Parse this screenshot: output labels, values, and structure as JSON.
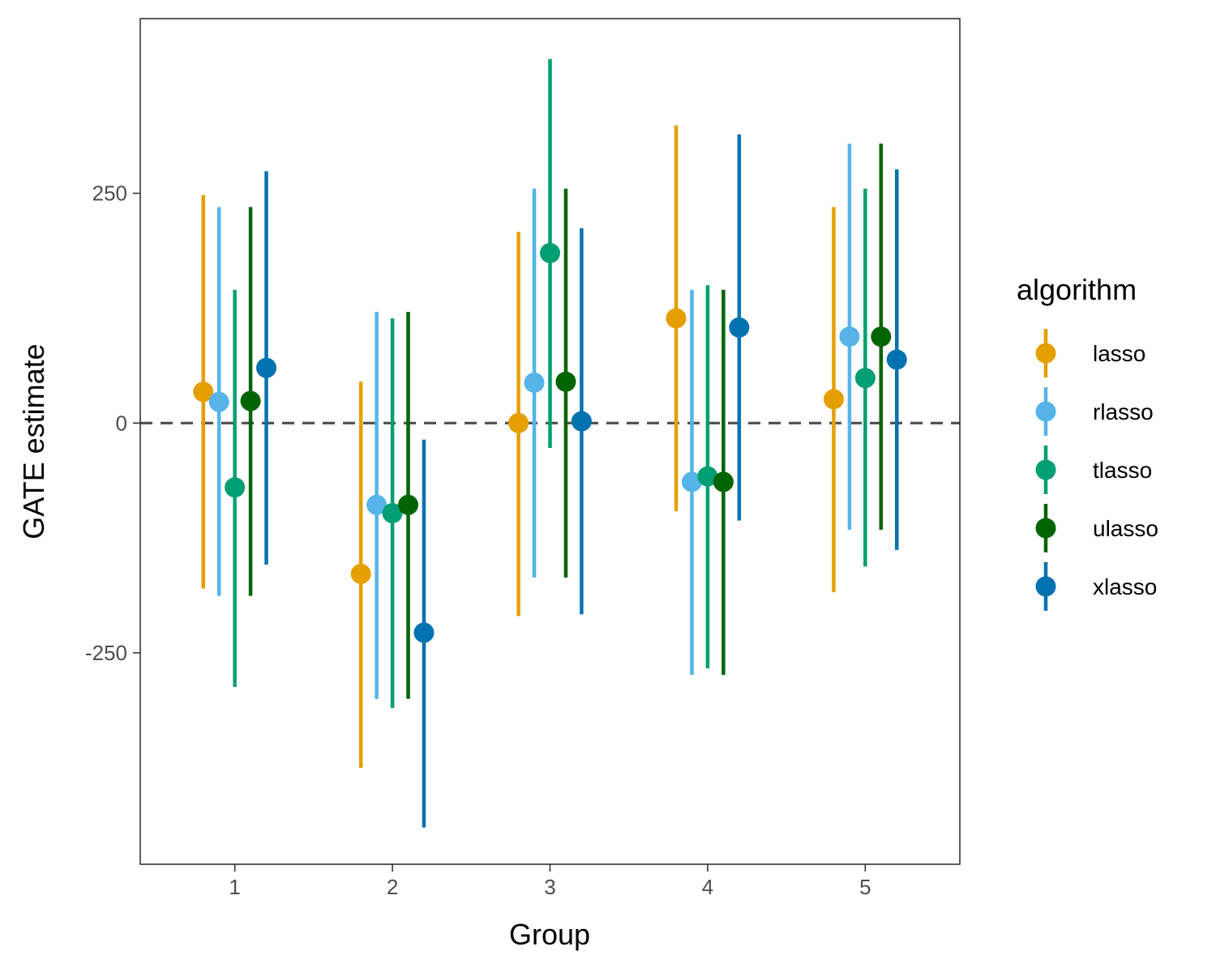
{
  "chart_data": {
    "type": "scatter",
    "subtype": "point-range (dodged points with 95% interval bars)",
    "xlabel": "Group",
    "ylabel": "GATE estimate",
    "categories": [
      "1",
      "2",
      "3",
      "4",
      "5"
    ],
    "xlim": [
      0.4,
      5.6
    ],
    "ylim": [
      -480,
      440
    ],
    "y_ticks": [
      {
        "value": -250,
        "label": "-250"
      },
      {
        "value": 0,
        "label": "0"
      },
      {
        "value": 250,
        "label": "250"
      }
    ],
    "reference_line": {
      "y": 0,
      "style": "dashed",
      "color": "#4d4d4d"
    },
    "grid": false,
    "legend": {
      "title": "algorithm",
      "position": "right"
    },
    "series": [
      {
        "name": "lasso",
        "color": "#E69F00",
        "points": [
          {
            "group": "1",
            "estimate": 34,
            "lower": -180,
            "upper": 248
          },
          {
            "group": "2",
            "estimate": -164,
            "lower": -375,
            "upper": 45
          },
          {
            "group": "3",
            "estimate": 0,
            "lower": -210,
            "upper": 208
          },
          {
            "group": "4",
            "estimate": 114,
            "lower": -96,
            "upper": 324
          },
          {
            "group": "5",
            "estimate": 26,
            "lower": -184,
            "upper": 235
          }
        ]
      },
      {
        "name": "rlasso",
        "color": "#56B4E9",
        "points": [
          {
            "group": "1",
            "estimate": 23,
            "lower": -188,
            "upper": 235
          },
          {
            "group": "2",
            "estimate": -89,
            "lower": -300,
            "upper": 121
          },
          {
            "group": "3",
            "estimate": 44,
            "lower": -168,
            "upper": 255
          },
          {
            "group": "4",
            "estimate": -64,
            "lower": -274,
            "upper": 145
          },
          {
            "group": "5",
            "estimate": 94,
            "lower": -116,
            "upper": 304
          }
        ]
      },
      {
        "name": "tlasso",
        "color": "#009E73",
        "points": [
          {
            "group": "1",
            "estimate": -70,
            "lower": -287,
            "upper": 145
          },
          {
            "group": "2",
            "estimate": -98,
            "lower": -310,
            "upper": 114
          },
          {
            "group": "3",
            "estimate": 185,
            "lower": -27,
            "upper": 396
          },
          {
            "group": "4",
            "estimate": -58,
            "lower": -267,
            "upper": 150
          },
          {
            "group": "5",
            "estimate": 49,
            "lower": -156,
            "upper": 255
          }
        ]
      },
      {
        "name": "ulasso",
        "color": "#006400",
        "points": [
          {
            "group": "1",
            "estimate": 24,
            "lower": -188,
            "upper": 235
          },
          {
            "group": "2",
            "estimate": -89,
            "lower": -300,
            "upper": 121
          },
          {
            "group": "3",
            "estimate": 45,
            "lower": -168,
            "upper": 255
          },
          {
            "group": "4",
            "estimate": -64,
            "lower": -274,
            "upper": 145
          },
          {
            "group": "5",
            "estimate": 94,
            "lower": -116,
            "upper": 304
          }
        ]
      },
      {
        "name": "xlasso",
        "color": "#0072B2",
        "points": [
          {
            "group": "1",
            "estimate": 60,
            "lower": -154,
            "upper": 274
          },
          {
            "group": "2",
            "estimate": -228,
            "lower": -440,
            "upper": -18
          },
          {
            "group": "3",
            "estimate": 2,
            "lower": -208,
            "upper": 212
          },
          {
            "group": "4",
            "estimate": 104,
            "lower": -106,
            "upper": 314
          },
          {
            "group": "5",
            "estimate": 69,
            "lower": -138,
            "upper": 276
          }
        ]
      }
    ]
  }
}
